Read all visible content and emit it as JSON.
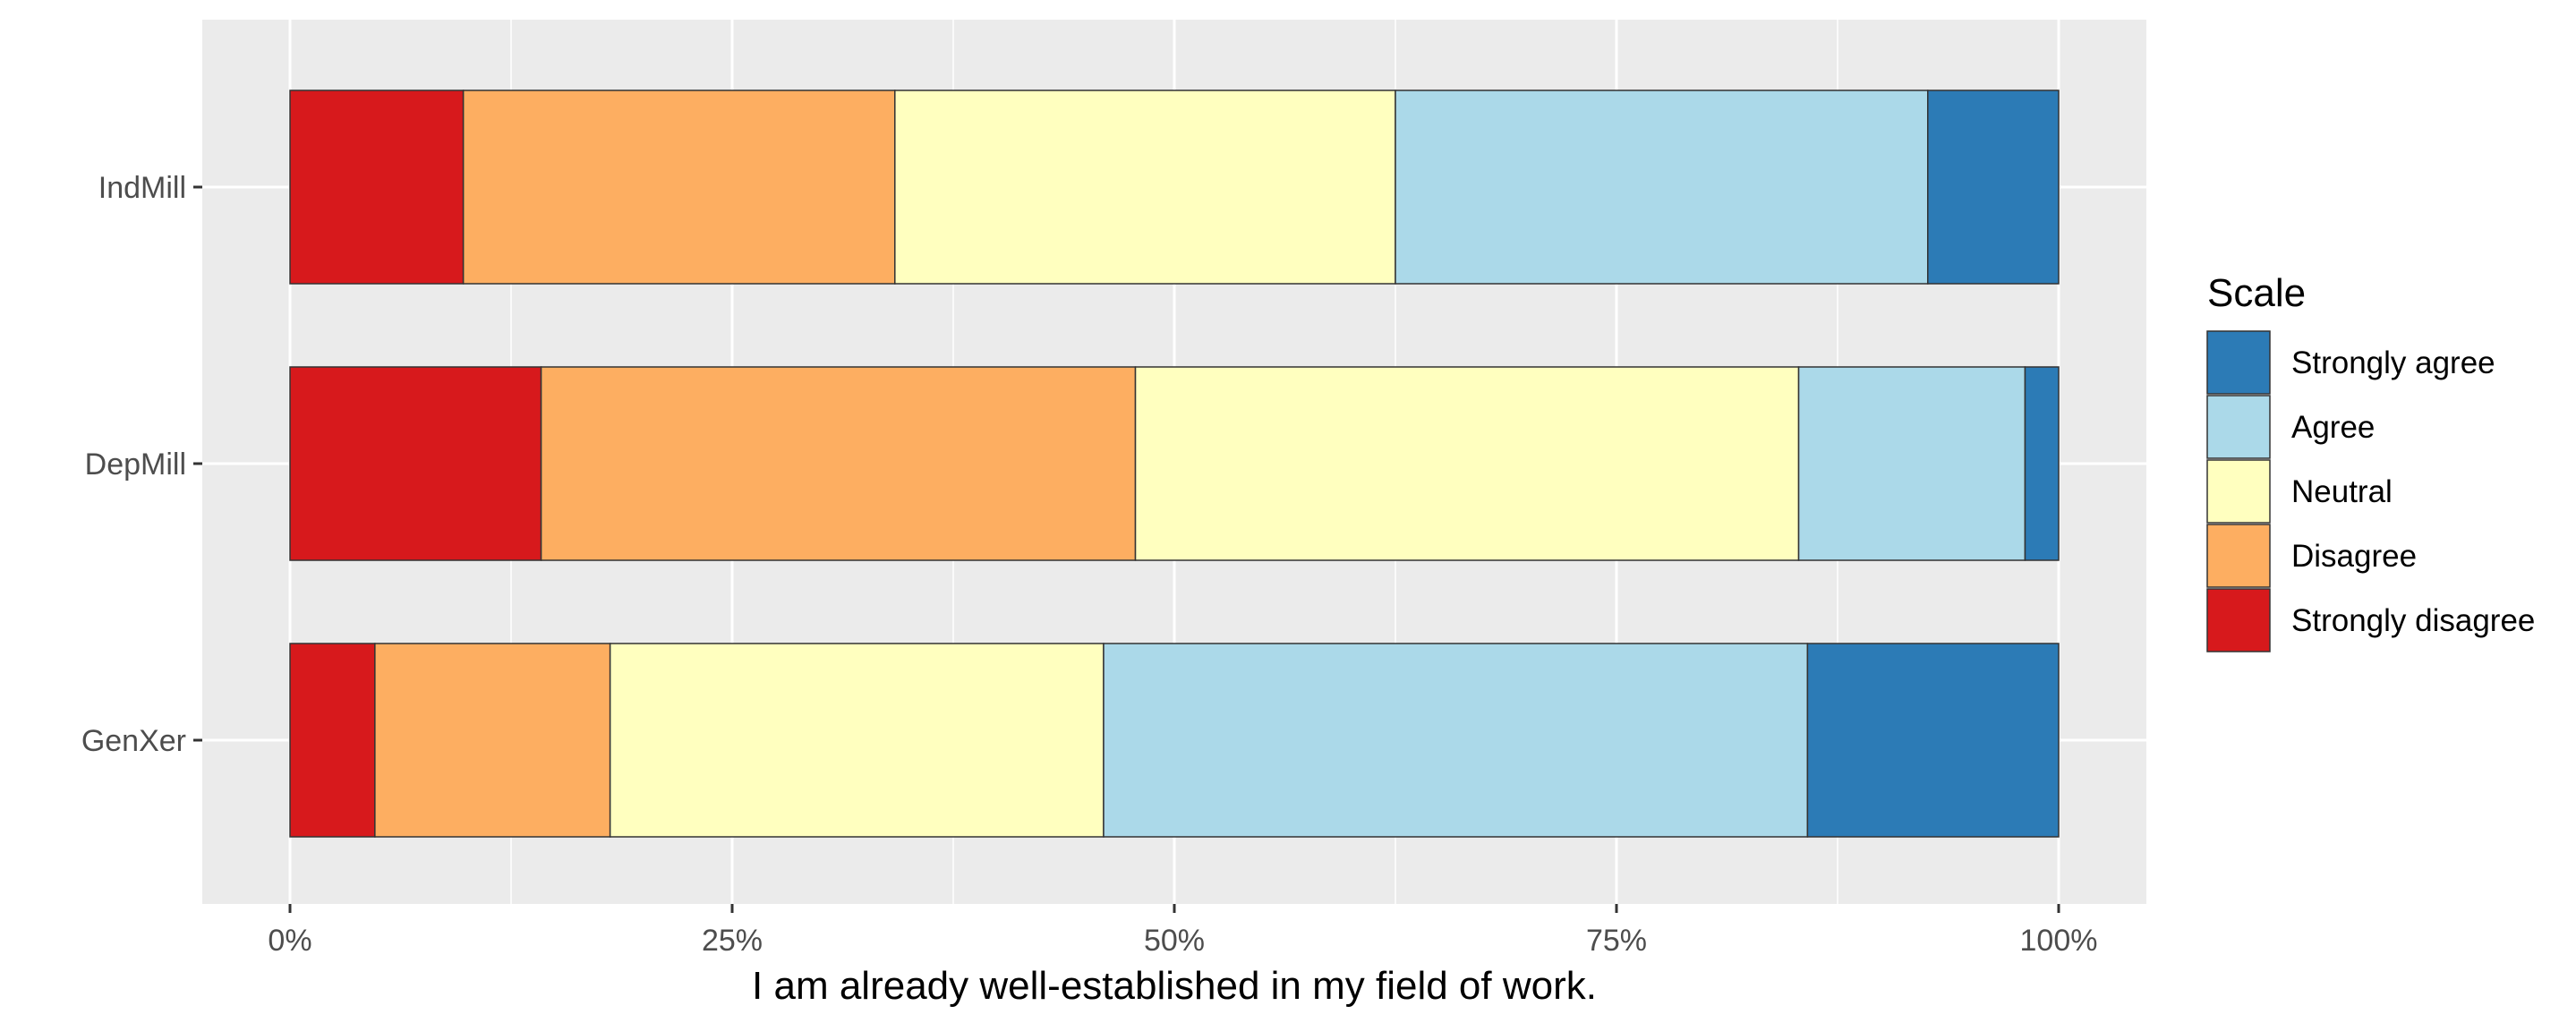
{
  "chart_data": {
    "type": "bar",
    "orientation": "horizontal",
    "stacked": "percent",
    "title": "",
    "xlabel": "I am already well-established in my field of work.",
    "ylabel": "",
    "xlim": [
      0,
      100
    ],
    "x_ticks": [
      0,
      25,
      50,
      75,
      100
    ],
    "x_tick_labels": [
      "0%",
      "25%",
      "50%",
      "75%",
      "100%"
    ],
    "categories": [
      "IndMill",
      "DepMill",
      "GenXer"
    ],
    "grid": true,
    "legend": {
      "title": "Scale",
      "position": "right"
    },
    "series": [
      {
        "name": "Strongly disagree",
        "color": "#d7191c",
        "values": [
          9.8,
          14.2,
          4.8
        ]
      },
      {
        "name": "Disagree",
        "color": "#fdae61",
        "values": [
          24.4,
          33.6,
          13.3
        ]
      },
      {
        "name": "Neutral",
        "color": "#ffffbf",
        "values": [
          28.3,
          37.5,
          27.9
        ]
      },
      {
        "name": "Agree",
        "color": "#abd9e9",
        "values": [
          30.1,
          12.8,
          39.8
        ]
      },
      {
        "name": "Strongly agree",
        "color": "#2c7bb6",
        "values": [
          7.4,
          1.9,
          14.2
        ]
      }
    ],
    "legend_order": [
      "Strongly agree",
      "Agree",
      "Neutral",
      "Disagree",
      "Strongly disagree"
    ]
  }
}
